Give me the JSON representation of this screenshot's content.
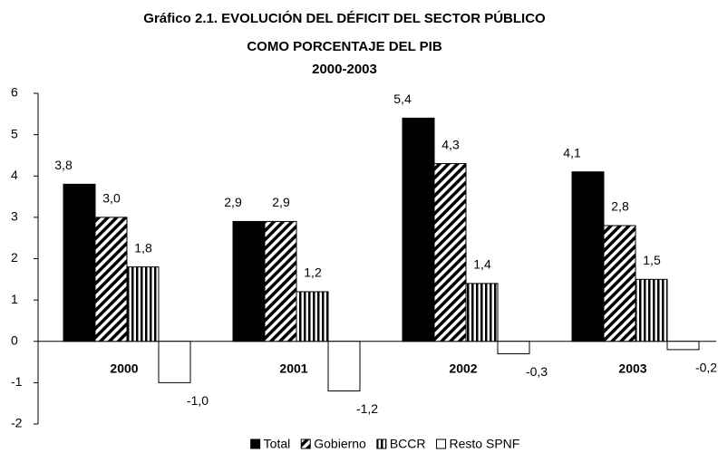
{
  "chart_data": {
    "type": "bar",
    "title": [
      "Gráfico 2.1. EVOLUCIÓN DEL DÉFICIT DEL SECTOR PÚBLICO",
      "COMO PORCENTAJE DEL PIB",
      "2000-2003"
    ],
    "categories": [
      "2000",
      "2001",
      "2002",
      "2003"
    ],
    "series": [
      {
        "name": "Total",
        "color": "#000000",
        "pattern": "solid",
        "values": [
          3.8,
          2.9,
          5.4,
          4.1
        ],
        "value_labels": [
          "3,8",
          "2,9",
          "5,4",
          "4,1"
        ]
      },
      {
        "name": "Gobierno",
        "color": "#000000",
        "pattern": "diagonal",
        "values": [
          3.0,
          2.9,
          4.3,
          2.8
        ],
        "value_labels": [
          "3,0",
          "2,9",
          "4,3",
          "2,8"
        ]
      },
      {
        "name": "BCCR",
        "color": "#000000",
        "pattern": "vertical",
        "values": [
          1.8,
          1.2,
          1.4,
          1.5
        ],
        "value_labels": [
          "1,8",
          "1,2",
          "1,4",
          "1,5"
        ]
      },
      {
        "name": "Resto SPNF",
        "color": "#ffffff",
        "pattern": "solid",
        "values": [
          -1.0,
          -1.2,
          -0.3,
          -0.2
        ],
        "value_labels": [
          "-1,0",
          "-1,2",
          "-0,3",
          "-0,2"
        ]
      }
    ],
    "ylim": [
      -2,
      6
    ],
    "yticks": [
      -2,
      -1,
      0,
      1,
      2,
      3,
      4,
      5,
      6
    ],
    "legend": "bottom"
  }
}
